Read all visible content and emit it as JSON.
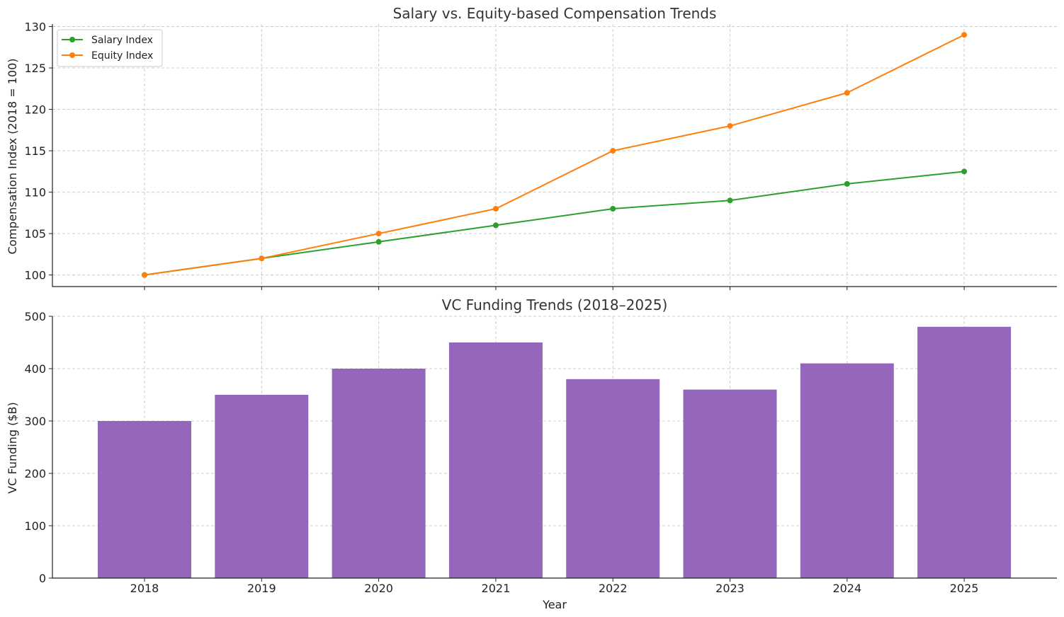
{
  "chart_data": [
    {
      "type": "line",
      "title": "Salary vs. Equity-based Compensation Trends",
      "xlabel": "",
      "ylabel": "Compensation Index (2018 = 100)",
      "x": [
        "2018",
        "2019",
        "2020",
        "2021",
        "2022",
        "2023",
        "2024",
        "2025"
      ],
      "ylim": [
        98.6,
        130.3
      ],
      "yticks": [
        "100",
        "105",
        "110",
        "115",
        "120",
        "125",
        "130"
      ],
      "grid": true,
      "legend_position": "top-left",
      "series": [
        {
          "name": "Salary Index",
          "color": "#2ca02c",
          "values": [
            100,
            102,
            104,
            106,
            108,
            109,
            111,
            112.5
          ]
        },
        {
          "name": "Equity Index",
          "color": "#ff7f0e",
          "values": [
            100,
            102,
            105,
            108,
            115,
            118,
            122,
            129
          ]
        }
      ]
    },
    {
      "type": "bar",
      "title": "VC Funding Trends (2018–2025)",
      "xlabel": "Year",
      "ylabel": "VC Funding ($B)",
      "categories": [
        "2018",
        "2019",
        "2020",
        "2021",
        "2022",
        "2023",
        "2024",
        "2025"
      ],
      "values": [
        300,
        350,
        400,
        450,
        380,
        360,
        410,
        480
      ],
      "ylim": [
        0,
        500
      ],
      "yticks": [
        "0",
        "100",
        "200",
        "300",
        "400",
        "500"
      ],
      "grid": true,
      "color": "#9467bd"
    }
  ]
}
